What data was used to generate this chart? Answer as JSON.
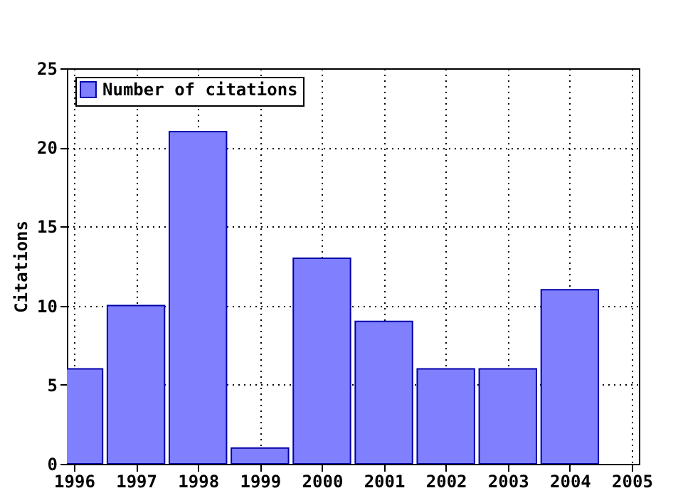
{
  "chart_data": {
    "type": "bar",
    "ylabel": "Citations",
    "x": [
      1996,
      1997,
      1998,
      1999,
      2000,
      2001,
      2002,
      2003,
      2004
    ],
    "series": [
      {
        "name": "Number of citations",
        "color": "#8080ff",
        "values": [
          6,
          10,
          21,
          1,
          13,
          9,
          6,
          6,
          11
        ]
      }
    ],
    "xlim": [
      1996,
      2005
    ],
    "xticks": [
      1996,
      1997,
      1998,
      1999,
      2000,
      2001,
      2002,
      2003,
      2004,
      2005
    ],
    "ylim": [
      0,
      25
    ],
    "yticks": [
      0,
      5,
      10,
      15,
      20,
      25
    ],
    "grid": true,
    "legend": "top left"
  }
}
